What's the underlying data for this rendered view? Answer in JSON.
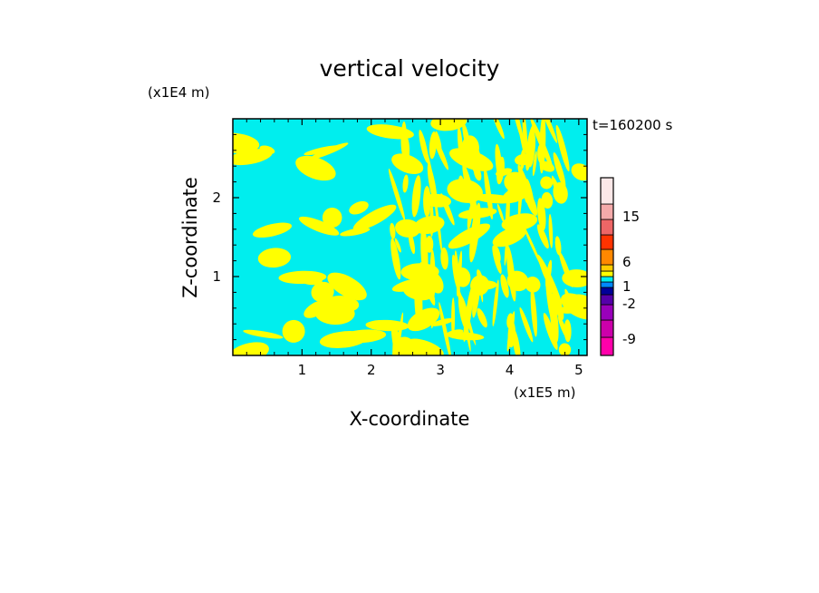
{
  "chart_data": {
    "type": "heatmap",
    "title": "vertical velocity",
    "xlabel": "X-coordinate",
    "ylabel": "Z-coordinate",
    "x_unit": "(x1E5 m)",
    "y_unit": "(x1E4 m)",
    "time_label": "t=160200 s",
    "xlim": [
      0,
      5.12
    ],
    "ylim": [
      0,
      3.0
    ],
    "x_ticks": [
      1,
      2,
      3,
      4,
      5
    ],
    "y_ticks": [
      1,
      2
    ],
    "x_tick_labels": [
      "1",
      "2",
      "3",
      "4",
      "5"
    ],
    "y_tick_labels": [
      "1",
      "2"
    ],
    "field_colors": {
      "positive": "#ffff00",
      "negative": "#00eeee"
    },
    "colorbar": {
      "levels": [
        {
          "color": "#ff00aa"
        },
        {
          "color": "#cc00aa"
        },
        {
          "color": "#9900bb"
        },
        {
          "color": "#5500aa"
        },
        {
          "color": "#000099"
        },
        {
          "color": "#0088ff"
        },
        {
          "color": "#00eeee"
        },
        {
          "color": "#ffff00"
        },
        {
          "color": "#ffcc00"
        },
        {
          "color": "#ff8800"
        },
        {
          "color": "#ff3300"
        },
        {
          "color": "#ee6666"
        },
        {
          "color": "#f4aaaa"
        },
        {
          "color": "#fce8e8"
        }
      ],
      "tick_labels": [
        "-9",
        "-2",
        "1",
        "6",
        "15"
      ]
    }
  }
}
